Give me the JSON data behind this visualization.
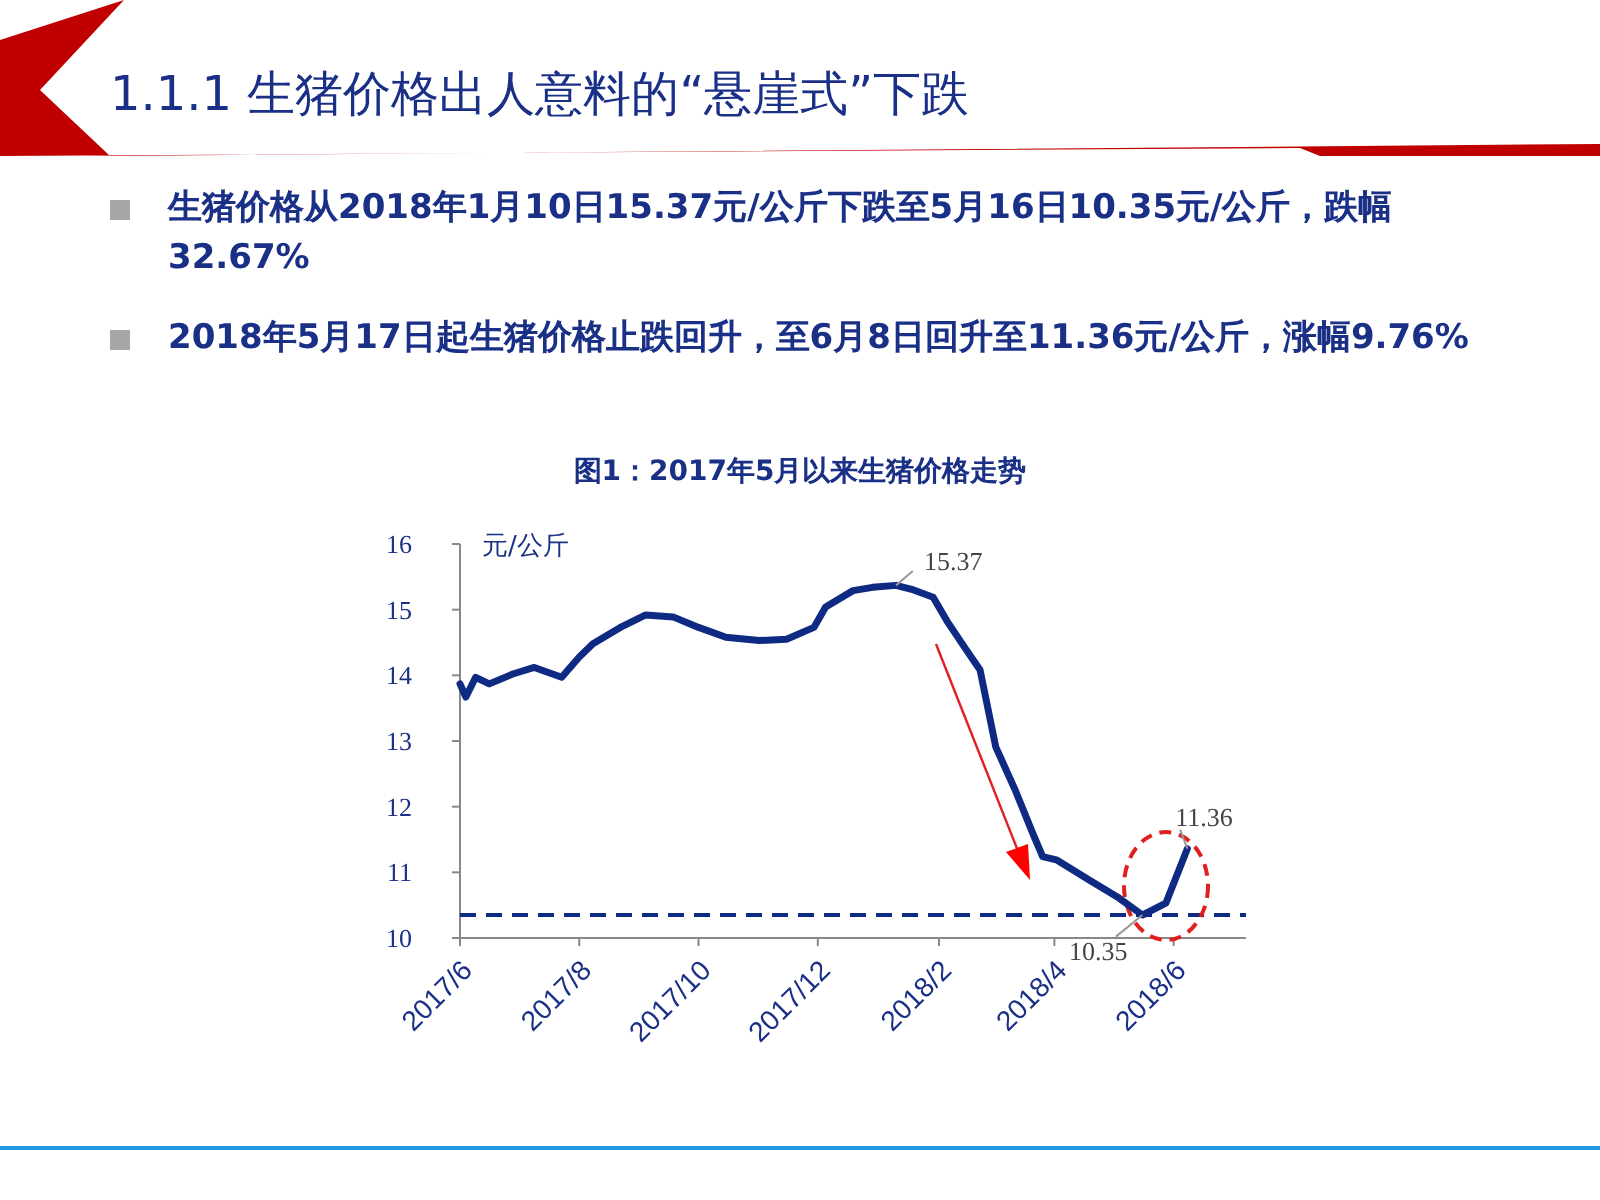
{
  "chart_data": {
    "type": "line",
    "title": "1.1.1 生猪价格出人意料的“悬崖式”下跌",
    "subtitle": "图1：2017年5月以来生猪价格走势",
    "ylabel": "元/公斤",
    "annotations": [
      "生猪价格从2018年1月10日15.37元/公斤下跌至5月16日10.35元/公斤，跌幅32.67%",
      "2018年5月17日起生猪价格止跌回升，至6月8日回升至11.36元/公斤，涨幅9.76%",
      {
        "text": "15.37",
        "x": "2018-01-10",
        "y": 15.37
      },
      {
        "text": "10.35",
        "x": "2018-05-16",
        "y": 10.35
      },
      {
        "text": "11.36",
        "x": "2018-06-08",
        "y": 11.36
      }
    ],
    "x": [
      "2017-06-01",
      "2017-06-04",
      "2017-06-09",
      "2017-06-16",
      "2017-06-28",
      "2017-07-09",
      "2017-07-23",
      "2017-08-01",
      "2017-08-08",
      "2017-08-22",
      "2017-09-04",
      "2017-09-18",
      "2017-10-01",
      "2017-10-15",
      "2017-11-01",
      "2017-11-15",
      "2017-11-29",
      "2017-12-05",
      "2017-12-19",
      "2017-12-29",
      "2018-01-10",
      "2018-01-19",
      "2018-01-29",
      "2018-02-05",
      "2018-02-14",
      "2018-02-22",
      "2018-03-02",
      "2018-03-12",
      "2018-03-21",
      "2018-03-26",
      "2018-04-02",
      "2018-04-19",
      "2018-05-03",
      "2018-05-16",
      "2018-05-28",
      "2018-06-08"
    ],
    "series": [
      {
        "color": "#0f2a82",
        "values": [
          13.87,
          13.67,
          13.97,
          13.87,
          14.02,
          14.12,
          13.97,
          14.28,
          14.48,
          14.73,
          14.92,
          14.89,
          14.73,
          14.58,
          14.53,
          14.55,
          14.73,
          15.04,
          15.29,
          15.34,
          15.37,
          15.3,
          15.19,
          14.83,
          14.43,
          14.08,
          12.91,
          12.25,
          11.59,
          11.24,
          11.19,
          10.88,
          10.63,
          10.35,
          10.53,
          11.36
        ]
      }
    ],
    "xlim": [
      "2017-06-01",
      "2018-07-08"
    ],
    "xticks": [
      {
        "value": "2017-06",
        "label": "2017/6"
      },
      {
        "value": "2017-08",
        "label": "2017/8"
      },
      {
        "value": "2017-10",
        "label": "2017/10"
      },
      {
        "value": "2017-12",
        "label": "2017/12"
      },
      {
        "value": "2018-02",
        "label": "2018/2"
      },
      {
        "value": "2018-04",
        "label": "2018/4"
      },
      {
        "value": "2018-06",
        "label": "2018/6"
      }
    ],
    "ylim": [
      10,
      16
    ],
    "yticks": [
      10,
      11,
      12,
      13,
      14,
      15,
      16
    ],
    "ref_lines": [
      {
        "axis": "y",
        "value": 10.35,
        "color": "#0f2a82",
        "line_style": "dashed"
      }
    ],
    "grid": false,
    "marker": "none",
    "line_style": "solid"
  }
}
